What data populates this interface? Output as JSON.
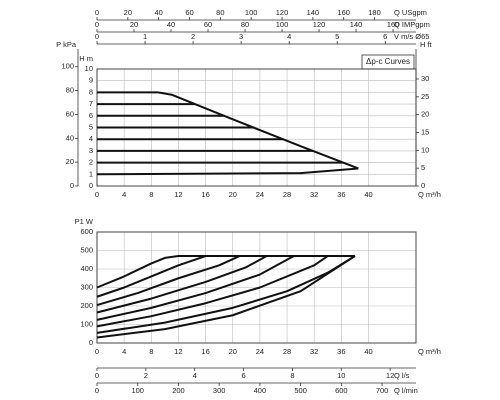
{
  "chart_data": [
    {
      "type": "line",
      "note": "Δp-c Curves",
      "xlabel": "Q m³/h",
      "ylabel": "H m",
      "xlim": [
        0,
        47
      ],
      "xticks": [
        0,
        4,
        8,
        12,
        16,
        20,
        24,
        28,
        32,
        36,
        40
      ],
      "ylim": [
        0,
        10
      ],
      "yticks": [
        0,
        1,
        2,
        3,
        4,
        5,
        6,
        7,
        8,
        9,
        10
      ],
      "grid": true,
      "top_axes": [
        {
          "label": "Q USgpm",
          "lim": [
            0,
            206.9
          ],
          "ticks": [
            0,
            20,
            40,
            60,
            80,
            100,
            120,
            140,
            160,
            180
          ]
        },
        {
          "label": "Q IMPgpm",
          "lim": [
            0,
            172.4
          ],
          "ticks": [
            0,
            20,
            40,
            60,
            80,
            100,
            120,
            140,
            160
          ]
        },
        {
          "label": "V m/s Ø65",
          "lim": [
            0,
            6.64
          ],
          "ticks": [
            0,
            1,
            2,
            3,
            4,
            5,
            6
          ]
        }
      ],
      "left_axis": {
        "label": "P kPa",
        "lim": [
          0,
          98.1
        ],
        "ticks": [
          0,
          20,
          40,
          60,
          80,
          100
        ]
      },
      "right_axis": {
        "label": "H ft",
        "lim": [
          0,
          32.8
        ],
        "ticks": [
          0,
          5,
          10,
          15,
          20,
          25,
          30
        ]
      },
      "series": [
        {
          "color": "#111111",
          "x": [
            0,
            9
          ],
          "values": [
            8,
            8
          ]
        },
        {
          "color": "#111111",
          "x": [
            0,
            14.4
          ],
          "values": [
            7,
            7
          ]
        },
        {
          "color": "#111111",
          "x": [
            0,
            18.8
          ],
          "values": [
            6,
            6
          ]
        },
        {
          "color": "#111111",
          "x": [
            0,
            23.2
          ],
          "values": [
            5,
            5
          ]
        },
        {
          "color": "#111111",
          "x": [
            0,
            27.5
          ],
          "values": [
            4,
            4
          ]
        },
        {
          "color": "#111111",
          "x": [
            0,
            31.9
          ],
          "values": [
            3,
            3
          ]
        },
        {
          "color": "#111111",
          "x": [
            0,
            36.3
          ],
          "values": [
            2,
            2
          ]
        },
        {
          "color": "#111111",
          "x": [
            0,
            30,
            38.5
          ],
          "values": [
            1,
            1.1,
            1.5
          ]
        },
        {
          "color": "#111111",
          "x": [
            9,
            11,
            20,
            30,
            38.5
          ],
          "values": [
            8,
            7.8,
            5.7,
            3.4,
            1.5
          ]
        }
      ]
    },
    {
      "type": "line",
      "xlabel": "Q m³/h",
      "ylabel": "P1 W",
      "xlim": [
        0,
        47
      ],
      "xticks": [
        0,
        4,
        8,
        12,
        16,
        20,
        24,
        28,
        32,
        36,
        40
      ],
      "ylim": [
        0,
        600
      ],
      "yticks": [
        0,
        100,
        200,
        300,
        400,
        500,
        600
      ],
      "grid": true,
      "bottom_axes": [
        {
          "label": "Q l/s",
          "lim": [
            0,
            13.06
          ],
          "ticks": [
            0,
            2,
            4,
            6,
            8,
            10,
            12
          ]
        },
        {
          "label": "Q l/min",
          "lim": [
            0,
            783.3
          ],
          "ticks": [
            0,
            100,
            200,
            300,
            400,
            500,
            600,
            700
          ]
        }
      ],
      "series": [
        {
          "color": "#111111",
          "x": [
            0,
            4,
            8,
            10,
            12,
            38
          ],
          "values": [
            300,
            360,
            430,
            460,
            470,
            470
          ]
        },
        {
          "color": "#111111",
          "x": [
            0,
            4,
            8,
            12,
            16
          ],
          "values": [
            250,
            300,
            360,
            420,
            470
          ]
        },
        {
          "color": "#111111",
          "x": [
            0,
            6,
            12,
            18,
            21
          ],
          "values": [
            205,
            270,
            350,
            420,
            470
          ]
        },
        {
          "color": "#111111",
          "x": [
            0,
            8,
            16,
            22,
            25
          ],
          "values": [
            165,
            240,
            330,
            410,
            470
          ]
        },
        {
          "color": "#111111",
          "x": [
            0,
            8,
            16,
            24,
            29
          ],
          "values": [
            125,
            190,
            270,
            370,
            470
          ]
        },
        {
          "color": "#111111",
          "x": [
            0,
            8,
            16,
            24,
            32,
            34
          ],
          "values": [
            90,
            145,
            215,
            300,
            420,
            470
          ]
        },
        {
          "color": "#111111",
          "x": [
            0,
            10,
            20,
            28,
            34,
            38
          ],
          "values": [
            55,
            110,
            190,
            280,
            380,
            470
          ]
        },
        {
          "color": "#111111",
          "x": [
            0,
            10,
            20,
            30,
            38
          ],
          "values": [
            30,
            75,
            150,
            280,
            470
          ]
        }
      ]
    }
  ]
}
